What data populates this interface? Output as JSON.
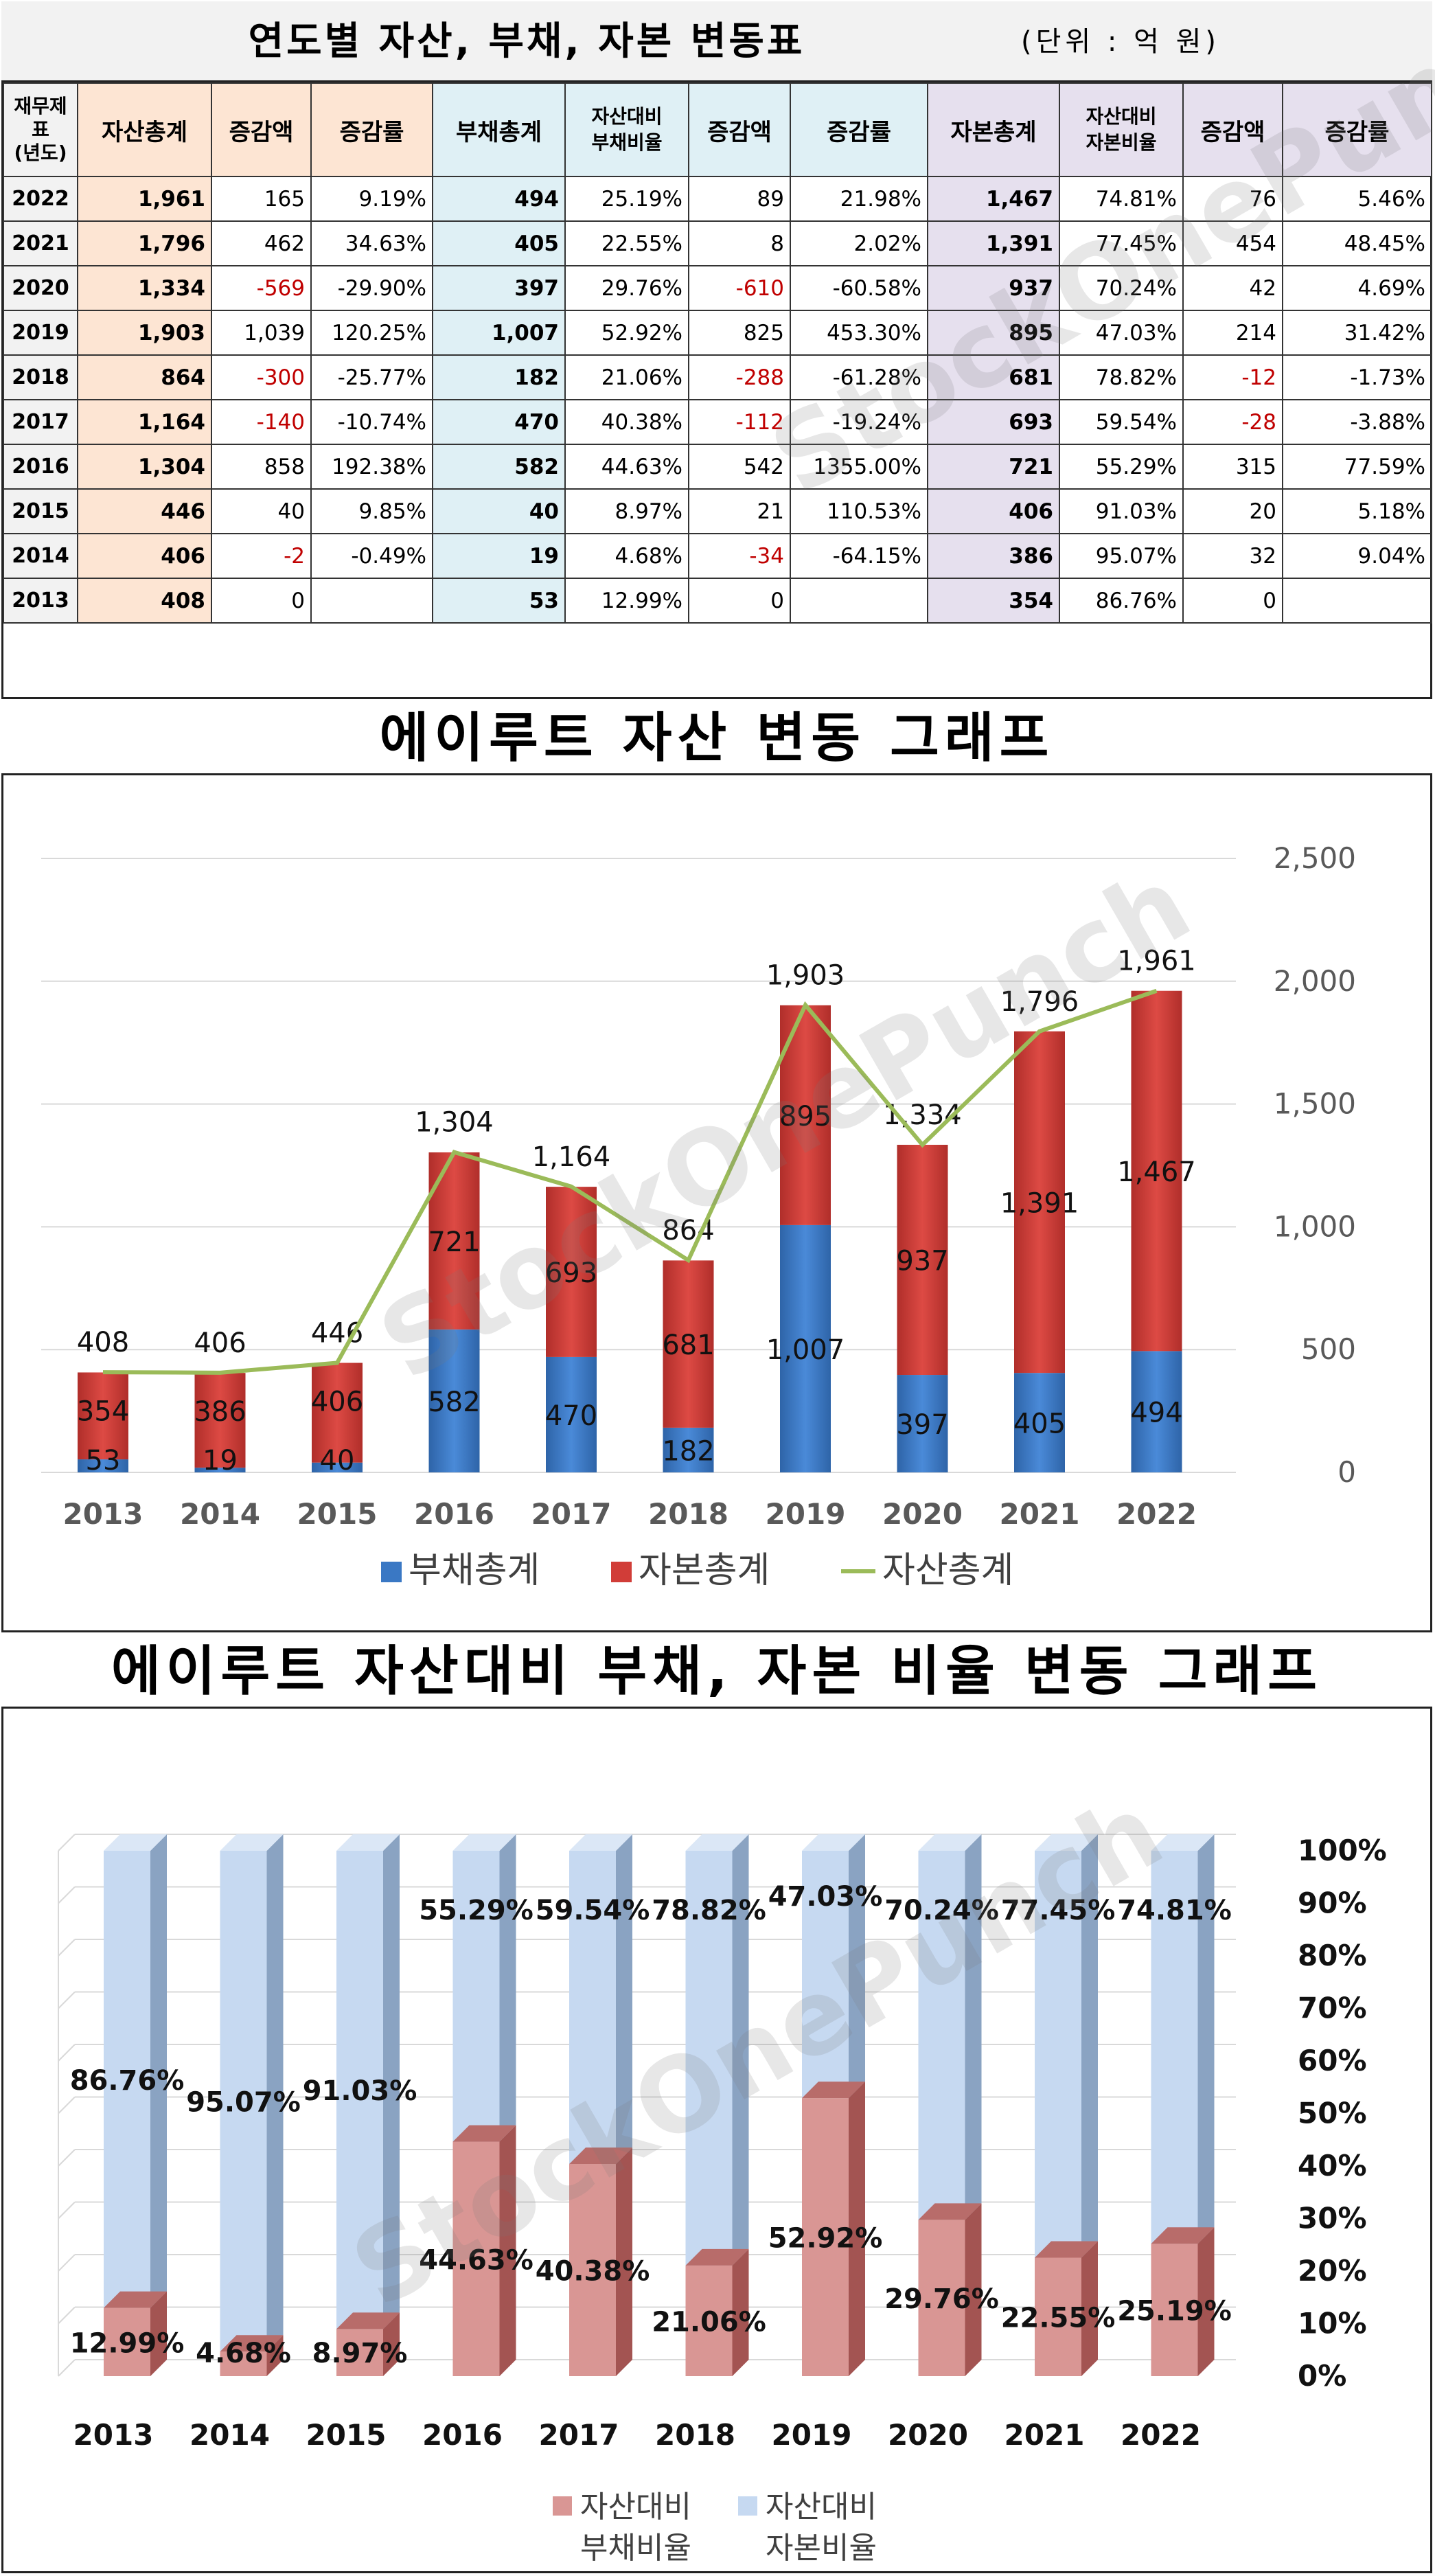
{
  "table": {
    "title": "연도별 자산, 부채, 자본 변동표",
    "unit": "(단위 : 억 원)",
    "headers": {
      "year": "재무제표\n(년도)",
      "assets": "자산총계",
      "assets_change": "증감액",
      "assets_rate": "증감률",
      "liab": "부채총계",
      "liab_ratio": "자산대비\n부채비율",
      "liab_change": "증감액",
      "liab_rate": "증감률",
      "equity": "자본총계",
      "equity_ratio": "자산대비\n자본비율",
      "equity_change": "증감액",
      "equity_rate": "증감률"
    },
    "rows": [
      {
        "year": "2022",
        "assets": "1,961",
        "a_chg": "165",
        "a_rate": "9.19%",
        "liab": "494",
        "l_ratio": "25.19%",
        "l_chg": "89",
        "l_rate": "21.98%",
        "equity": "1,467",
        "e_ratio": "74.81%",
        "e_chg": "76",
        "e_rate": "5.46%"
      },
      {
        "year": "2021",
        "assets": "1,796",
        "a_chg": "462",
        "a_rate": "34.63%",
        "liab": "405",
        "l_ratio": "22.55%",
        "l_chg": "8",
        "l_rate": "2.02%",
        "equity": "1,391",
        "e_ratio": "77.45%",
        "e_chg": "454",
        "e_rate": "48.45%"
      },
      {
        "year": "2020",
        "assets": "1,334",
        "a_chg": "-569",
        "a_rate": "-29.90%",
        "liab": "397",
        "l_ratio": "29.76%",
        "l_chg": "-610",
        "l_rate": "-60.58%",
        "equity": "937",
        "e_ratio": "70.24%",
        "e_chg": "42",
        "e_rate": "4.69%"
      },
      {
        "year": "2019",
        "assets": "1,903",
        "a_chg": "1,039",
        "a_rate": "120.25%",
        "liab": "1,007",
        "l_ratio": "52.92%",
        "l_chg": "825",
        "l_rate": "453.30%",
        "equity": "895",
        "e_ratio": "47.03%",
        "e_chg": "214",
        "e_rate": "31.42%"
      },
      {
        "year": "2018",
        "assets": "864",
        "a_chg": "-300",
        "a_rate": "-25.77%",
        "liab": "182",
        "l_ratio": "21.06%",
        "l_chg": "-288",
        "l_rate": "-61.28%",
        "equity": "681",
        "e_ratio": "78.82%",
        "e_chg": "-12",
        "e_rate": "-1.73%"
      },
      {
        "year": "2017",
        "assets": "1,164",
        "a_chg": "-140",
        "a_rate": "-10.74%",
        "liab": "470",
        "l_ratio": "40.38%",
        "l_chg": "-112",
        "l_rate": "-19.24%",
        "equity": "693",
        "e_ratio": "59.54%",
        "e_chg": "-28",
        "e_rate": "-3.88%"
      },
      {
        "year": "2016",
        "assets": "1,304",
        "a_chg": "858",
        "a_rate": "192.38%",
        "liab": "582",
        "l_ratio": "44.63%",
        "l_chg": "542",
        "l_rate": "1355.00%",
        "equity": "721",
        "e_ratio": "55.29%",
        "e_chg": "315",
        "e_rate": "77.59%"
      },
      {
        "year": "2015",
        "assets": "446",
        "a_chg": "40",
        "a_rate": "9.85%",
        "liab": "40",
        "l_ratio": "8.97%",
        "l_chg": "21",
        "l_rate": "110.53%",
        "equity": "406",
        "e_ratio": "91.03%",
        "e_chg": "20",
        "e_rate": "5.18%"
      },
      {
        "year": "2014",
        "assets": "406",
        "a_chg": "-2",
        "a_rate": "-0.49%",
        "liab": "19",
        "l_ratio": "4.68%",
        "l_chg": "-34",
        "l_rate": "-64.15%",
        "equity": "386",
        "e_ratio": "95.07%",
        "e_chg": "32",
        "e_rate": "9.04%"
      },
      {
        "year": "2013",
        "assets": "408",
        "a_chg": "0",
        "a_rate": "",
        "liab": "53",
        "l_ratio": "12.99%",
        "l_chg": "0",
        "l_rate": "",
        "equity": "354",
        "e_ratio": "86.76%",
        "e_chg": "0",
        "e_rate": ""
      }
    ]
  },
  "chart1_title": "에이루트 자산 변동 그래프",
  "chart2_title": "에이루트 자산대비 부채, 자본 비율 변동 그래프",
  "watermark": "StockOnePunch",
  "colors": {
    "liab": "#3a78c4",
    "equity": "#d13d38",
    "assets_line": "#9bbb59",
    "liab_ratio": "#d99694",
    "equity_ratio": "#c6d9f1",
    "negative": "#c00000"
  },
  "chart_data": [
    {
      "type": "bar",
      "stacked": true,
      "title": "에이루트 자산 변동 그래프",
      "categories": [
        "2013",
        "2014",
        "2015",
        "2016",
        "2017",
        "2018",
        "2019",
        "2020",
        "2021",
        "2022"
      ],
      "series": [
        {
          "name": "부채총계",
          "type": "bar",
          "values": [
            53,
            19,
            40,
            582,
            470,
            182,
            1007,
            397,
            405,
            494
          ]
        },
        {
          "name": "자본총계",
          "type": "bar",
          "values": [
            354,
            386,
            406,
            721,
            693,
            681,
            895,
            937,
            1391,
            1467
          ]
        },
        {
          "name": "자산총계",
          "type": "line",
          "values": [
            408,
            406,
            446,
            1304,
            1164,
            864,
            1903,
            1334,
            1796,
            1961
          ]
        }
      ],
      "y_ticks": [
        "0",
        "500",
        "1,000",
        "1,500",
        "2,000",
        "2,500"
      ],
      "ylim": [
        0,
        2500
      ],
      "y_axis_side": "right",
      "grid": true,
      "legend": "bottom"
    },
    {
      "type": "bar",
      "stacked": true,
      "title": "에이루트 자산대비 부채, 자본 비율 변동 그래프",
      "categories": [
        "2013",
        "2014",
        "2015",
        "2016",
        "2017",
        "2018",
        "2019",
        "2020",
        "2021",
        "2022"
      ],
      "series": [
        {
          "name": "자산대비 부채비율",
          "values": [
            12.99,
            4.68,
            8.97,
            44.63,
            40.38,
            21.06,
            52.92,
            29.76,
            22.55,
            25.19
          ],
          "labels": [
            "12.99%",
            "4.68%",
            "8.97%",
            "44.63%",
            "40.38%",
            "21.06%",
            "52.92%",
            "29.76%",
            "22.55%",
            "25.19%"
          ]
        },
        {
          "name": "자산대비 자본비율",
          "values": [
            86.76,
            95.07,
            91.03,
            55.29,
            59.54,
            78.82,
            47.03,
            70.24,
            77.45,
            74.81
          ],
          "labels": [
            "86.76%",
            "95.07%",
            "91.03%",
            "55.29%",
            "59.54%",
            "78.82%",
            "47.03%",
            "70.24%",
            "77.45%",
            "74.81%"
          ]
        }
      ],
      "y_ticks": [
        "0%",
        "10%",
        "20%",
        "30%",
        "40%",
        "50%",
        "60%",
        "70%",
        "80%",
        "90%",
        "100%"
      ],
      "ylim": [
        0,
        100
      ],
      "y_axis_side": "right",
      "grid": true,
      "legend": "bottom"
    }
  ]
}
